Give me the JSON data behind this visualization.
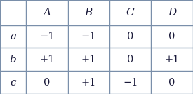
{
  "col_headers": [
    "",
    "A",
    "B",
    "C",
    "D"
  ],
  "row_headers": [
    "a",
    "b",
    "c"
  ],
  "cell_data": [
    [
      "−1",
      "−1",
      "0",
      "0"
    ],
    [
      "+1",
      "+1",
      "0",
      "+1"
    ],
    [
      "0",
      "+1",
      "−1",
      "0"
    ]
  ],
  "bg_color": "#ffffff",
  "border_color": "#7a8faa",
  "header_font_size": 11,
  "cell_font_size": 10.5,
  "text_color": "#1a1a3a",
  "fig_width": 2.75,
  "fig_height": 1.34,
  "dpi": 100
}
